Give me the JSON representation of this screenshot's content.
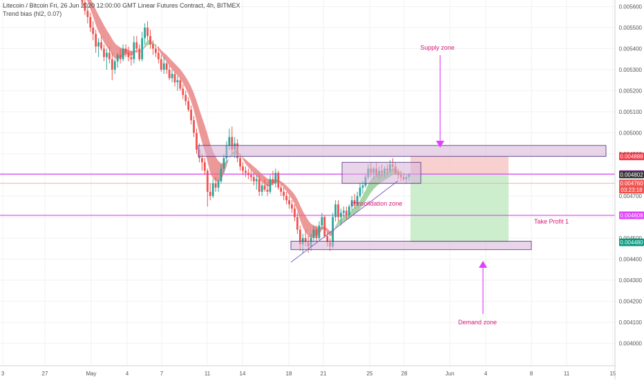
{
  "header": {
    "title": "Litecoin / Bitcoin Fri, 26 Jun 2020 12:00:00 GMT Linear Futures Contract, 4h, BITMEX",
    "indicator": "Trend bias (hl2, 0.07)"
  },
  "colors": {
    "bull": "#26a69a",
    "bear": "#ef5350",
    "magenta": "#e040fb",
    "zone_fill": "#d7b3d7",
    "zone_stroke": "#4a2c7a",
    "stop_fill": "#f8c8c8",
    "target_fill": "#c6ecc6",
    "ribbon_bear": "#e57373",
    "ribbon_bull": "#81c784",
    "annotation_text": "#d81b78"
  },
  "chart_data": {
    "type": "candlestick",
    "title": "Litecoin / Bitcoin Fri, 26 Jun 2020 12:00:00 GMT Linear Futures Contract, 4h, BITMEX",
    "x_axis": {
      "ticks": [
        "3",
        "27",
        "May",
        "4",
        "7",
        "11",
        "14",
        "18",
        "21",
        "25",
        "28",
        "Jun",
        "4",
        "8",
        "11",
        "15"
      ]
    },
    "y_axis": {
      "ticks": [
        "0.005600",
        "0.005500",
        "0.005400",
        "0.005300",
        "0.005200",
        "0.005100",
        "0.005000",
        "0.004900",
        "0.004800",
        "0.004700",
        "0.004600",
        "0.004500",
        "0.004400",
        "0.004300",
        "0.004200",
        "0.004100",
        "0.004000"
      ],
      "range": [
        0.00395,
        0.0057
      ]
    },
    "price_labels": [
      {
        "value": 0.004888,
        "text": "0.004888",
        "color": "#f23645"
      },
      {
        "value": 0.004804,
        "text": "0.004804",
        "color": "#e040fb"
      },
      {
        "value": 0.004802,
        "text": "0.004802",
        "color": "#333333"
      },
      {
        "value": 0.00476,
        "text": "0.004760",
        "color": "#ef5350"
      },
      {
        "value": 0.00473,
        "text": "03:23:18",
        "color": "#ef5350"
      },
      {
        "value": 0.004608,
        "text": "0.004608",
        "color": "#e040fb"
      },
      {
        "value": 0.00448,
        "text": "0.004480",
        "color": "#089981"
      }
    ],
    "horizontal_lines": [
      {
        "value": 0.004804,
        "color": "#e040fb"
      },
      {
        "value": 0.004608,
        "color": "#e040fb"
      },
      {
        "value": 0.00476,
        "color": "#f4a6a6"
      }
    ],
    "annotations": [
      {
        "text": "Supply zone"
      },
      {
        "text": "consolidation zone"
      },
      {
        "text": "Take Profit 1"
      },
      {
        "text": "Demand zone"
      }
    ],
    "zones": [
      {
        "name": "supply-zone",
        "y_top": 0.00494,
        "y_bottom": 0.004888
      },
      {
        "name": "consolidation-zone",
        "y_top": 0.00486,
        "y_bottom": 0.00476
      },
      {
        "name": "demand-zone",
        "y_top": 0.004485,
        "y_bottom": 0.004445
      }
    ],
    "position": {
      "entry": 0.004802,
      "stop": 0.004888,
      "target": 0.00448
    },
    "candles_ohlc": [
      [
        0.00572,
        0.00575,
        0.00565,
        0.00568
      ],
      [
        0.00568,
        0.0057,
        0.0056,
        0.00562
      ],
      [
        0.00562,
        0.00564,
        0.00556,
        0.00558
      ],
      [
        0.00558,
        0.0056,
        0.00552,
        0.00555
      ],
      [
        0.00555,
        0.00557,
        0.00548,
        0.0055
      ],
      [
        0.0055,
        0.00553,
        0.00544,
        0.00547
      ],
      [
        0.00547,
        0.00549,
        0.00538,
        0.00541
      ],
      [
        0.00541,
        0.00545,
        0.00536,
        0.00543
      ],
      [
        0.00543,
        0.00546,
        0.00539,
        0.0054
      ],
      [
        0.0054,
        0.00542,
        0.00534,
        0.00536
      ],
      [
        0.00536,
        0.0054,
        0.0053,
        0.00538
      ],
      [
        0.00538,
        0.00541,
        0.00533,
        0.00535
      ],
      [
        0.00535,
        0.00538,
        0.00525,
        0.0053
      ],
      [
        0.0053,
        0.00535,
        0.00528,
        0.00534
      ],
      [
        0.00534,
        0.00538,
        0.00531,
        0.00537
      ],
      [
        0.00537,
        0.0054,
        0.00533,
        0.00535
      ],
      [
        0.00535,
        0.00542,
        0.00534,
        0.0054
      ],
      [
        0.0054,
        0.00542,
        0.00536,
        0.00538
      ],
      [
        0.00538,
        0.00541,
        0.00534,
        0.00536
      ],
      [
        0.00536,
        0.00539,
        0.00532,
        0.00535
      ],
      [
        0.00535,
        0.00546,
        0.00533,
        0.00543
      ],
      [
        0.00543,
        0.00546,
        0.00538,
        0.0054
      ],
      [
        0.0054,
        0.00542,
        0.00534,
        0.00535
      ],
      [
        0.00535,
        0.00548,
        0.00534,
        0.00545
      ],
      [
        0.00545,
        0.00552,
        0.00542,
        0.0055
      ],
      [
        0.0055,
        0.00553,
        0.00544,
        0.00546
      ],
      [
        0.00546,
        0.00549,
        0.0054,
        0.00542
      ],
      [
        0.00542,
        0.00544,
        0.00537,
        0.0054
      ],
      [
        0.0054,
        0.00542,
        0.00536,
        0.00538
      ],
      [
        0.00538,
        0.00541,
        0.00533,
        0.00535
      ],
      [
        0.00535,
        0.00537,
        0.00529,
        0.0053
      ],
      [
        0.0053,
        0.00536,
        0.00528,
        0.00533
      ],
      [
        0.00533,
        0.00534,
        0.00528,
        0.0053
      ],
      [
        0.0053,
        0.00532,
        0.00525,
        0.00526
      ],
      [
        0.00526,
        0.0053,
        0.00524,
        0.00528
      ],
      [
        0.00528,
        0.00529,
        0.00522,
        0.00524
      ],
      [
        0.00524,
        0.00527,
        0.0052,
        0.00525
      ],
      [
        0.00525,
        0.00526,
        0.0052,
        0.00521
      ],
      [
        0.00521,
        0.00523,
        0.00516,
        0.00518
      ],
      [
        0.00518,
        0.0052,
        0.00513,
        0.00515
      ],
      [
        0.00515,
        0.00517,
        0.0051,
        0.00511
      ],
      [
        0.00511,
        0.00513,
        0.00504,
        0.00506
      ],
      [
        0.00506,
        0.00508,
        0.00498,
        0.005
      ],
      [
        0.005,
        0.00502,
        0.0049,
        0.00492
      ],
      [
        0.00492,
        0.00495,
        0.00486,
        0.00488
      ],
      [
        0.00488,
        0.0049,
        0.00482,
        0.00486
      ],
      [
        0.00486,
        0.00488,
        0.0048,
        0.00482
      ],
      [
        0.00482,
        0.00483,
        0.00465,
        0.00472
      ],
      [
        0.00472,
        0.00476,
        0.00468,
        0.0047
      ],
      [
        0.0047,
        0.00478,
        0.00469,
        0.00476
      ],
      [
        0.00476,
        0.00479,
        0.00472,
        0.00474
      ],
      [
        0.00474,
        0.00478,
        0.00472,
        0.00477
      ],
      [
        0.00477,
        0.00485,
        0.00476,
        0.00483
      ],
      [
        0.00483,
        0.0049,
        0.00481,
        0.00488
      ],
      [
        0.00488,
        0.00496,
        0.00486,
        0.00494
      ],
      [
        0.00494,
        0.00502,
        0.00492,
        0.00498
      ],
      [
        0.00498,
        0.00503,
        0.0049,
        0.00492
      ],
      [
        0.00492,
        0.00498,
        0.00488,
        0.00495
      ],
      [
        0.00495,
        0.00497,
        0.00486,
        0.00488
      ],
      [
        0.00488,
        0.0049,
        0.00482,
        0.00484
      ],
      [
        0.00484,
        0.00486,
        0.0048,
        0.00482
      ],
      [
        0.00482,
        0.00484,
        0.00479,
        0.00481
      ],
      [
        0.00481,
        0.00483,
        0.00478,
        0.0048
      ],
      [
        0.0048,
        0.00482,
        0.00477,
        0.00479
      ],
      [
        0.00479,
        0.00481,
        0.00475,
        0.00477
      ],
      [
        0.00477,
        0.0048,
        0.00473,
        0.00478
      ],
      [
        0.00478,
        0.0048,
        0.0047,
        0.00472
      ],
      [
        0.00472,
        0.00476,
        0.0047,
        0.00475
      ],
      [
        0.00475,
        0.00478,
        0.00472,
        0.00473
      ],
      [
        0.00473,
        0.00476,
        0.0047,
        0.00472
      ],
      [
        0.00472,
        0.0048,
        0.00471,
        0.00478
      ],
      [
        0.00478,
        0.00482,
        0.00475,
        0.00476
      ],
      [
        0.00476,
        0.00483,
        0.00474,
        0.00481
      ],
      [
        0.00481,
        0.00482,
        0.00473,
        0.00474
      ],
      [
        0.00474,
        0.00476,
        0.0047,
        0.00472
      ],
      [
        0.00472,
        0.00474,
        0.00468,
        0.0047
      ],
      [
        0.0047,
        0.00472,
        0.00466,
        0.00468
      ],
      [
        0.00468,
        0.0047,
        0.00464,
        0.00466
      ],
      [
        0.00466,
        0.00468,
        0.00462,
        0.00464
      ],
      [
        0.00464,
        0.00466,
        0.00458,
        0.0046
      ],
      [
        0.0046,
        0.00462,
        0.00452,
        0.00454
      ],
      [
        0.00454,
        0.00456,
        0.00444,
        0.00447
      ],
      [
        0.00447,
        0.00452,
        0.00443,
        0.0045
      ],
      [
        0.0045,
        0.00454,
        0.00446,
        0.00448
      ],
      [
        0.00448,
        0.00451,
        0.00443,
        0.00446
      ],
      [
        0.00446,
        0.00452,
        0.00444,
        0.0045
      ],
      [
        0.0045,
        0.00456,
        0.00448,
        0.00454
      ],
      [
        0.00454,
        0.00456,
        0.00448,
        0.0045
      ],
      [
        0.0045,
        0.00458,
        0.00449,
        0.00456
      ],
      [
        0.00456,
        0.00462,
        0.00454,
        0.0046
      ],
      [
        0.0046,
        0.00461,
        0.0045,
        0.00451
      ],
      [
        0.00451,
        0.00453,
        0.00446,
        0.00448
      ],
      [
        0.00448,
        0.0045,
        0.00444,
        0.00446
      ],
      [
        0.00446,
        0.00462,
        0.00445,
        0.0046
      ],
      [
        0.0046,
        0.00468,
        0.00458,
        0.00466
      ],
      [
        0.00466,
        0.00468,
        0.00458,
        0.0046
      ],
      [
        0.0046,
        0.00464,
        0.00456,
        0.00462
      ],
      [
        0.00462,
        0.00465,
        0.0046,
        0.00463
      ],
      [
        0.00463,
        0.00465,
        0.00459,
        0.00461
      ],
      [
        0.00461,
        0.00466,
        0.0046,
        0.00465
      ],
      [
        0.00465,
        0.0047,
        0.00463,
        0.00468
      ],
      [
        0.00468,
        0.00471,
        0.00464,
        0.00466
      ],
      [
        0.00466,
        0.00472,
        0.00465,
        0.0047
      ],
      [
        0.0047,
        0.00476,
        0.00469,
        0.00474
      ],
      [
        0.00474,
        0.00477,
        0.00471,
        0.00475
      ],
      [
        0.00475,
        0.0048,
        0.00474,
        0.00479
      ],
      [
        0.00479,
        0.00485,
        0.00478,
        0.00483
      ],
      [
        0.00483,
        0.00486,
        0.00479,
        0.00481
      ],
      [
        0.00481,
        0.00484,
        0.00478,
        0.00483
      ],
      [
        0.00483,
        0.00486,
        0.00479,
        0.0048
      ],
      [
        0.0048,
        0.00484,
        0.00478,
        0.00482
      ],
      [
        0.00482,
        0.00485,
        0.00479,
        0.00481
      ],
      [
        0.00481,
        0.00484,
        0.00479,
        0.00483
      ],
      [
        0.00483,
        0.00485,
        0.0048,
        0.00482
      ],
      [
        0.00482,
        0.00487,
        0.00481,
        0.00485
      ],
      [
        0.00485,
        0.00488,
        0.00482,
        0.00484
      ],
      [
        0.00484,
        0.00486,
        0.0048,
        0.00481
      ],
      [
        0.00481,
        0.00483,
        0.00478,
        0.0048
      ],
      [
        0.0048,
        0.00482,
        0.00477,
        0.00479
      ],
      [
        0.00479,
        0.00481,
        0.00477,
        0.00478
      ],
      [
        0.00478,
        0.0048,
        0.00476,
        0.00479
      ],
      [
        0.00479,
        0.00481,
        0.00477,
        0.004802
      ]
    ]
  }
}
